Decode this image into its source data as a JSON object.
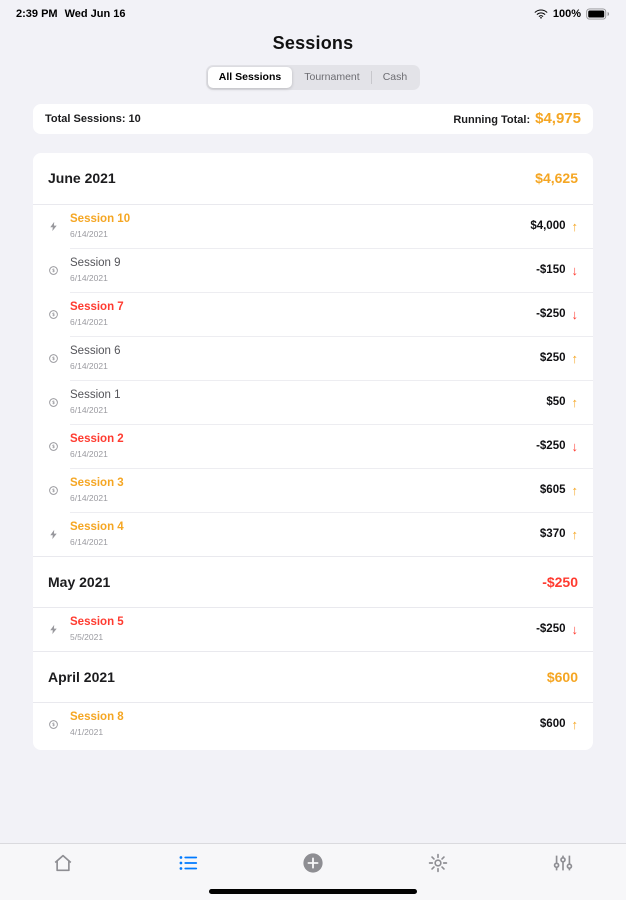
{
  "colors": {
    "accent_orange": "#F5A623",
    "negative_red": "#FF3B30",
    "active_blue": "#007AFF",
    "muted_gray": "#8E8E93"
  },
  "status_bar": {
    "time": "2:39 PM",
    "date": "Wed Jun 16",
    "wifi_icon": "wifi",
    "battery_percent": "100%",
    "battery_icon": "battery"
  },
  "header": {
    "title": "Sessions"
  },
  "segmented_control": {
    "options": [
      {
        "label": "All Sessions",
        "selected": true
      },
      {
        "label": "Tournament",
        "selected": false
      },
      {
        "label": "Cash",
        "selected": false
      }
    ]
  },
  "summary": {
    "total_sessions_label": "Total Sessions: 10",
    "running_total_label": "Running Total:",
    "running_total_value": "$4,975"
  },
  "session_groups": [
    {
      "month": "June 2021",
      "total": "$4,625",
      "total_color": "orange",
      "sessions": [
        {
          "icon": "bolt",
          "name": "Session 10",
          "name_color": "orange",
          "date": "6/14/2021",
          "amount": "$4,000",
          "direction": "up"
        },
        {
          "icon": "coin",
          "name": "Session 9",
          "name_color": "gray",
          "date": "6/14/2021",
          "amount": "-$150",
          "direction": "down"
        },
        {
          "icon": "coin",
          "name": "Session 7",
          "name_color": "red",
          "date": "6/14/2021",
          "amount": "-$250",
          "direction": "down"
        },
        {
          "icon": "coin",
          "name": "Session 6",
          "name_color": "gray",
          "date": "6/14/2021",
          "amount": "$250",
          "direction": "up"
        },
        {
          "icon": "coin",
          "name": "Session 1",
          "name_color": "gray",
          "date": "6/14/2021",
          "amount": "$50",
          "direction": "up"
        },
        {
          "icon": "coin",
          "name": "Session 2",
          "name_color": "red",
          "date": "6/14/2021",
          "amount": "-$250",
          "direction": "down"
        },
        {
          "icon": "coin",
          "name": "Session 3",
          "name_color": "orange",
          "date": "6/14/2021",
          "amount": "$605",
          "direction": "up"
        },
        {
          "icon": "bolt",
          "name": "Session 4",
          "name_color": "orange",
          "date": "6/14/2021",
          "amount": "$370",
          "direction": "up"
        }
      ]
    },
    {
      "month": "May 2021",
      "total": "-$250",
      "total_color": "red",
      "sessions": [
        {
          "icon": "bolt",
          "name": "Session 5",
          "name_color": "red",
          "date": "5/5/2021",
          "amount": "-$250",
          "direction": "down"
        }
      ]
    },
    {
      "month": "April 2021",
      "total": "$600",
      "total_color": "orange",
      "sessions": [
        {
          "icon": "coin",
          "name": "Session 8",
          "name_color": "orange",
          "date": "4/1/2021",
          "amount": "$600",
          "direction": "up"
        }
      ]
    }
  ],
  "tab_bar": {
    "items": [
      {
        "name": "home-tab",
        "icon": "home",
        "active": false
      },
      {
        "name": "sessions-tab",
        "icon": "list",
        "active": true
      },
      {
        "name": "add-session-tab",
        "icon": "plus-circle",
        "active": false
      },
      {
        "name": "settings-tab",
        "icon": "gear",
        "active": false
      },
      {
        "name": "filters-tab",
        "icon": "sliders",
        "active": false
      }
    ]
  }
}
